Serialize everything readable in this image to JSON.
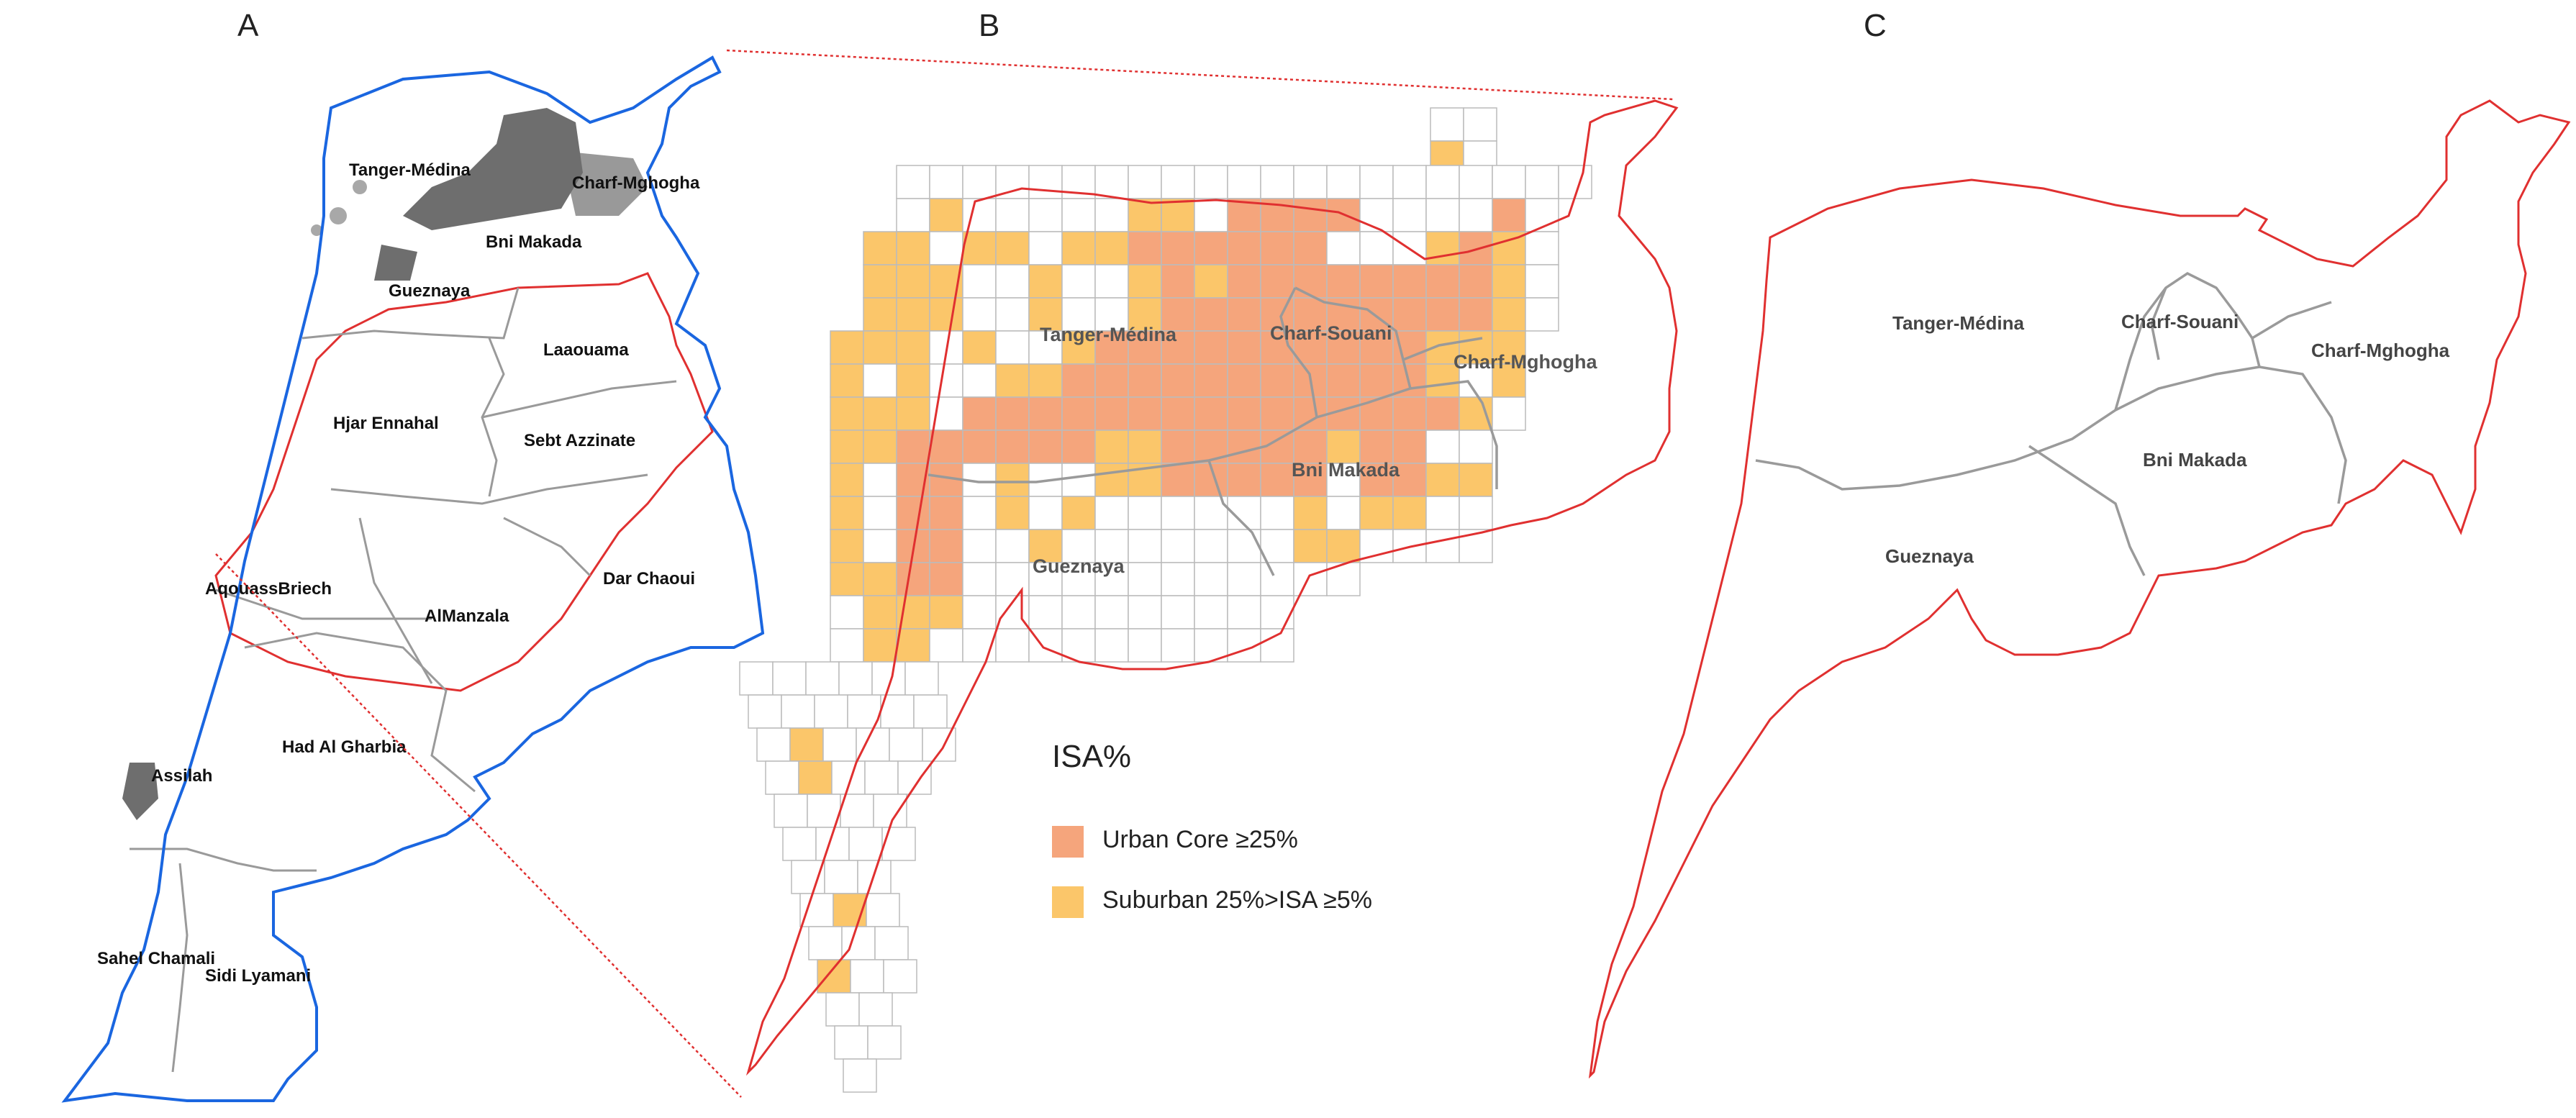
{
  "panels": [
    {
      "letter": "A"
    },
    {
      "letter": "B"
    },
    {
      "letter": "C"
    }
  ],
  "panel_a": {
    "labels": [
      "Tanger-Médina",
      "Charf-Mghogha",
      "Bni Makada",
      "Gueznaya",
      "Laaouama",
      "Hjar Ennahal",
      "Sebt Azzinate",
      "AqouassBriech",
      "AlManzala",
      "Dar Chaoui",
      "Had Al Gharbia",
      "Assilah",
      "Sahel Chamali",
      "Sidi Lyamani"
    ],
    "boundary_color": "#1a66e0",
    "urban_color": "#6e6e6e"
  },
  "panel_b": {
    "labels": [
      "Tanger-Médina",
      "Charf-Souani",
      "Charf-Mghogha",
      "Bni Makada",
      "Gueznaya"
    ]
  },
  "panel_c": {
    "labels": [
      "Tanger-Médina",
      "Charf-Souani",
      "Charf-Mghogha",
      "Bni Makada",
      "Gueznaya"
    ]
  },
  "legend": {
    "title": "ISA%",
    "items": [
      {
        "label": "Urban Core ≥25%",
        "color": "#f5a57c"
      },
      {
        "label": "Suburban 25%>ISA ≥5%",
        "color": "#fbc66a"
      }
    ]
  },
  "colors": {
    "prefecture_outline": "#e03030",
    "commune_lines": "#9a9a9a",
    "grid_lines": "#bbbbbb"
  }
}
